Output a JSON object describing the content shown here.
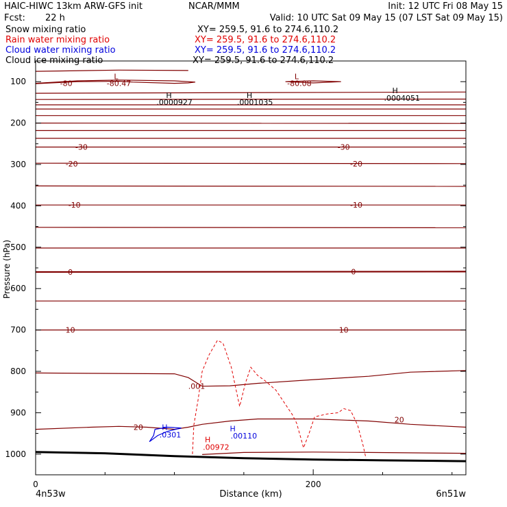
{
  "header": {
    "model": "HAIC-HIWC 13km ARW-GFS init",
    "center": "NCAR/MMM",
    "init": "Init: 12 UTC Fri 08 May 15",
    "fcst_label": "Fcst:",
    "fcst_value": "22 h",
    "valid": "Valid: 10 UTC Sat 09 May 15 (07 LST Sat 09 May 15)"
  },
  "fields": [
    {
      "name": "Snow mixing ratio",
      "xy": "XY= 259.5, 91.6 to 274.6,110.2",
      "color": "#000000"
    },
    {
      "name": "Rain water mixing ratio",
      "xy": "XY= 259.5, 91.6 to 274.6,110.2",
      "color": "#e00000"
    },
    {
      "name": "Cloud water mixing ratio",
      "xy": "XY= 259.5, 91.6 to 274.6,110.2",
      "color": "#0000dd"
    },
    {
      "name": "Cloud ice mixing ratio",
      "xy": "XY= 259.5, 91.6 to 274.6,110.2",
      "color": "#000000"
    }
  ],
  "chart_data": {
    "type": "contour",
    "ylabel": "Pressure (hPa)",
    "xlabel": "Distance (km)",
    "x_left_label": "4n53w",
    "x_right_label": "6n51w",
    "xlim": [
      0,
      310
    ],
    "ylim": [
      1050,
      50
    ],
    "x_ticks": [
      0,
      200
    ],
    "y_ticks": [
      100,
      200,
      300,
      400,
      500,
      600,
      700,
      800,
      900,
      1000
    ],
    "temperature_color": "#800000",
    "rain_color": "#e00000",
    "cloud_color": "#0000dd",
    "terrain_color": "#000000",
    "temperature_contours": [
      {
        "value": "-80",
        "points": [
          [
            0,
            105
          ],
          [
            30,
            100
          ],
          [
            60,
            99
          ],
          [
            70,
            101
          ],
          [
            100,
            104
          ],
          [
            110,
            103
          ],
          [
            115,
            101
          ],
          [
            100,
            98
          ],
          [
            60,
            96
          ],
          [
            30,
            98
          ],
          [
            0,
            104
          ]
        ]
      },
      {
        "value": "",
        "points": [
          [
            0,
            75
          ],
          [
            60,
            72
          ],
          [
            110,
            73
          ]
        ]
      },
      {
        "value": "",
        "points": [
          [
            180,
            100
          ],
          [
            200,
            98
          ],
          [
            220,
            100
          ],
          [
            200,
            103
          ],
          [
            180,
            100
          ]
        ]
      },
      {
        "value": "",
        "points": [
          [
            0,
            128
          ],
          [
            310,
            125
          ]
        ]
      },
      {
        "value": "",
        "points": [
          [
            0,
            143
          ],
          [
            310,
            142
          ]
        ]
      },
      {
        "value": "",
        "points": [
          [
            0,
            156
          ],
          [
            310,
            156
          ]
        ]
      },
      {
        "value": "",
        "points": [
          [
            0,
            166
          ],
          [
            310,
            166
          ]
        ]
      },
      {
        "value": "",
        "points": [
          [
            0,
            182
          ],
          [
            310,
            182
          ]
        ]
      },
      {
        "value": "",
        "points": [
          [
            0,
            200
          ],
          [
            310,
            201
          ]
        ]
      },
      {
        "value": "",
        "points": [
          [
            0,
            218
          ],
          [
            310,
            218
          ]
        ]
      },
      {
        "value": "",
        "points": [
          [
            0,
            237
          ],
          [
            310,
            237
          ]
        ]
      },
      {
        "value": "-30",
        "points": [
          [
            0,
            258
          ],
          [
            310,
            258
          ]
        ]
      },
      {
        "value": "-20",
        "points": [
          [
            0,
            297
          ],
          [
            310,
            298
          ]
        ]
      },
      {
        "value": "",
        "points": [
          [
            0,
            352
          ],
          [
            310,
            353
          ]
        ]
      },
      {
        "value": "-10",
        "points": [
          [
            0,
            398
          ],
          [
            310,
            398
          ]
        ]
      },
      {
        "value": "",
        "points": [
          [
            0,
            452
          ],
          [
            310,
            453
          ]
        ]
      },
      {
        "value": "",
        "points": [
          [
            0,
            502
          ],
          [
            310,
            502
          ]
        ]
      },
      {
        "value": "0",
        "points": [
          [
            0,
            560
          ],
          [
            310,
            559
          ]
        ]
      },
      {
        "value": "",
        "points": [
          [
            0,
            630
          ],
          [
            310,
            630
          ]
        ]
      },
      {
        "value": "10",
        "points": [
          [
            0,
            700
          ],
          [
            310,
            700
          ]
        ]
      },
      {
        "value": ".001",
        "points": [
          [
            0,
            804
          ],
          [
            50,
            805
          ],
          [
            100,
            806
          ],
          [
            110,
            815
          ],
          [
            120,
            836
          ],
          [
            140,
            835
          ],
          [
            160,
            829
          ],
          [
            200,
            820
          ],
          [
            240,
            812
          ],
          [
            270,
            802
          ],
          [
            310,
            798
          ]
        ]
      },
      {
        "value": "20",
        "points": [
          [
            0,
            940
          ],
          [
            40,
            935
          ],
          [
            60,
            933
          ],
          [
            80,
            935
          ],
          [
            100,
            940
          ],
          [
            110,
            935
          ],
          [
            120,
            928
          ],
          [
            140,
            920
          ],
          [
            160,
            915
          ],
          [
            200,
            915
          ],
          [
            240,
            920
          ],
          [
            270,
            928
          ],
          [
            310,
            935
          ]
        ]
      },
      {
        "value": "",
        "points": [
          [
            120,
            1001
          ],
          [
            150,
            996
          ],
          [
            200,
            995
          ],
          [
            240,
            996
          ],
          [
            310,
            998
          ]
        ]
      }
    ],
    "rain_contour": {
      "points": [
        [
          113,
          1000
        ],
        [
          114,
          930
        ],
        [
          117,
          870
        ],
        [
          120,
          800
        ],
        [
          125,
          760
        ],
        [
          131,
          725
        ],
        [
          135,
          732
        ],
        [
          141,
          790
        ],
        [
          147,
          885
        ],
        [
          151,
          830
        ],
        [
          155,
          790
        ],
        [
          160,
          810
        ],
        [
          165,
          822
        ],
        [
          173,
          845
        ],
        [
          185,
          905
        ],
        [
          188,
          925
        ],
        [
          191,
          960
        ],
        [
          193,
          985
        ],
        [
          197,
          950
        ],
        [
          201,
          910
        ],
        [
          210,
          903
        ],
        [
          218,
          900
        ],
        [
          222,
          890
        ],
        [
          227,
          895
        ],
        [
          232,
          930
        ],
        [
          236,
          980
        ],
        [
          238,
          1010
        ]
      ]
    },
    "cloud_contour": {
      "points": [
        [
          105,
          937
        ],
        [
          95,
          945
        ],
        [
          88,
          955
        ],
        [
          82,
          970
        ],
        [
          85,
          955
        ],
        [
          86,
          940
        ],
        [
          95,
          935
        ],
        [
          105,
          937
        ]
      ]
    },
    "terrain": {
      "points": [
        [
          0,
          995
        ],
        [
          50,
          998
        ],
        [
          100,
          1005
        ],
        [
          150,
          1010
        ],
        [
          200,
          1013
        ],
        [
          250,
          1015
        ],
        [
          310,
          1017
        ]
      ]
    },
    "labels": [
      {
        "text": "L",
        "x": 58,
        "y": 87,
        "color": "#800000"
      },
      {
        "text": "-80.47",
        "x": 60,
        "y": 104,
        "color": "#800000"
      },
      {
        "text": "L",
        "x": 188,
        "y": 87,
        "color": "#800000"
      },
      {
        "text": "-80.08",
        "x": 190,
        "y": 104,
        "color": "#800000"
      },
      {
        "text": "-80",
        "x": 22,
        "y": 104,
        "color": "#800000"
      },
      {
        "text": "H",
        "x": 96,
        "y": 133,
        "color": "#000000"
      },
      {
        "text": ".0000927",
        "x": 100,
        "y": 149,
        "color": "#000000"
      },
      {
        "text": "H",
        "x": 154,
        "y": 133,
        "color": "#000000"
      },
      {
        "text": ".0001035",
        "x": 158,
        "y": 149,
        "color": "#000000"
      },
      {
        "text": "H",
        "x": 259,
        "y": 121,
        "color": "#000000"
      },
      {
        "text": ".0004051",
        "x": 264,
        "y": 139,
        "color": "#000000"
      },
      {
        "text": "-30",
        "x": 33,
        "y": 258,
        "color": "#800000"
      },
      {
        "text": "-30",
        "x": 222,
        "y": 258,
        "color": "#800000"
      },
      {
        "text": "-20",
        "x": 26,
        "y": 298,
        "color": "#800000"
      },
      {
        "text": "-20",
        "x": 231,
        "y": 298,
        "color": "#800000"
      },
      {
        "text": "-10",
        "x": 28,
        "y": 398,
        "color": "#800000"
      },
      {
        "text": "-10",
        "x": 231,
        "y": 398,
        "color": "#800000"
      },
      {
        "text": "0",
        "x": 25,
        "y": 560,
        "color": "#800000"
      },
      {
        "text": "0",
        "x": 229,
        "y": 559,
        "color": "#800000"
      },
      {
        "text": "10",
        "x": 25,
        "y": 700,
        "color": "#800000"
      },
      {
        "text": "10",
        "x": 222,
        "y": 700,
        "color": "#800000"
      },
      {
        "text": ".001",
        "x": 116,
        "y": 836,
        "color": "#800000"
      },
      {
        "text": "20",
        "x": 74,
        "y": 935,
        "color": "#800000"
      },
      {
        "text": "20",
        "x": 262,
        "y": 917,
        "color": "#800000"
      },
      {
        "text": "H",
        "x": 93,
        "y": 935,
        "color": "#0000dd"
      },
      {
        "text": ".0301",
        "x": 97,
        "y": 953,
        "color": "#0000dd"
      },
      {
        "text": "H",
        "x": 142,
        "y": 938,
        "color": "#0000dd"
      },
      {
        "text": ".00110",
        "x": 150,
        "y": 956,
        "color": "#0000dd"
      },
      {
        "text": "H",
        "x": 124,
        "y": 965,
        "color": "#e00000"
      },
      {
        "text": ".00972",
        "x": 130,
        "y": 983,
        "color": "#e00000"
      }
    ]
  }
}
